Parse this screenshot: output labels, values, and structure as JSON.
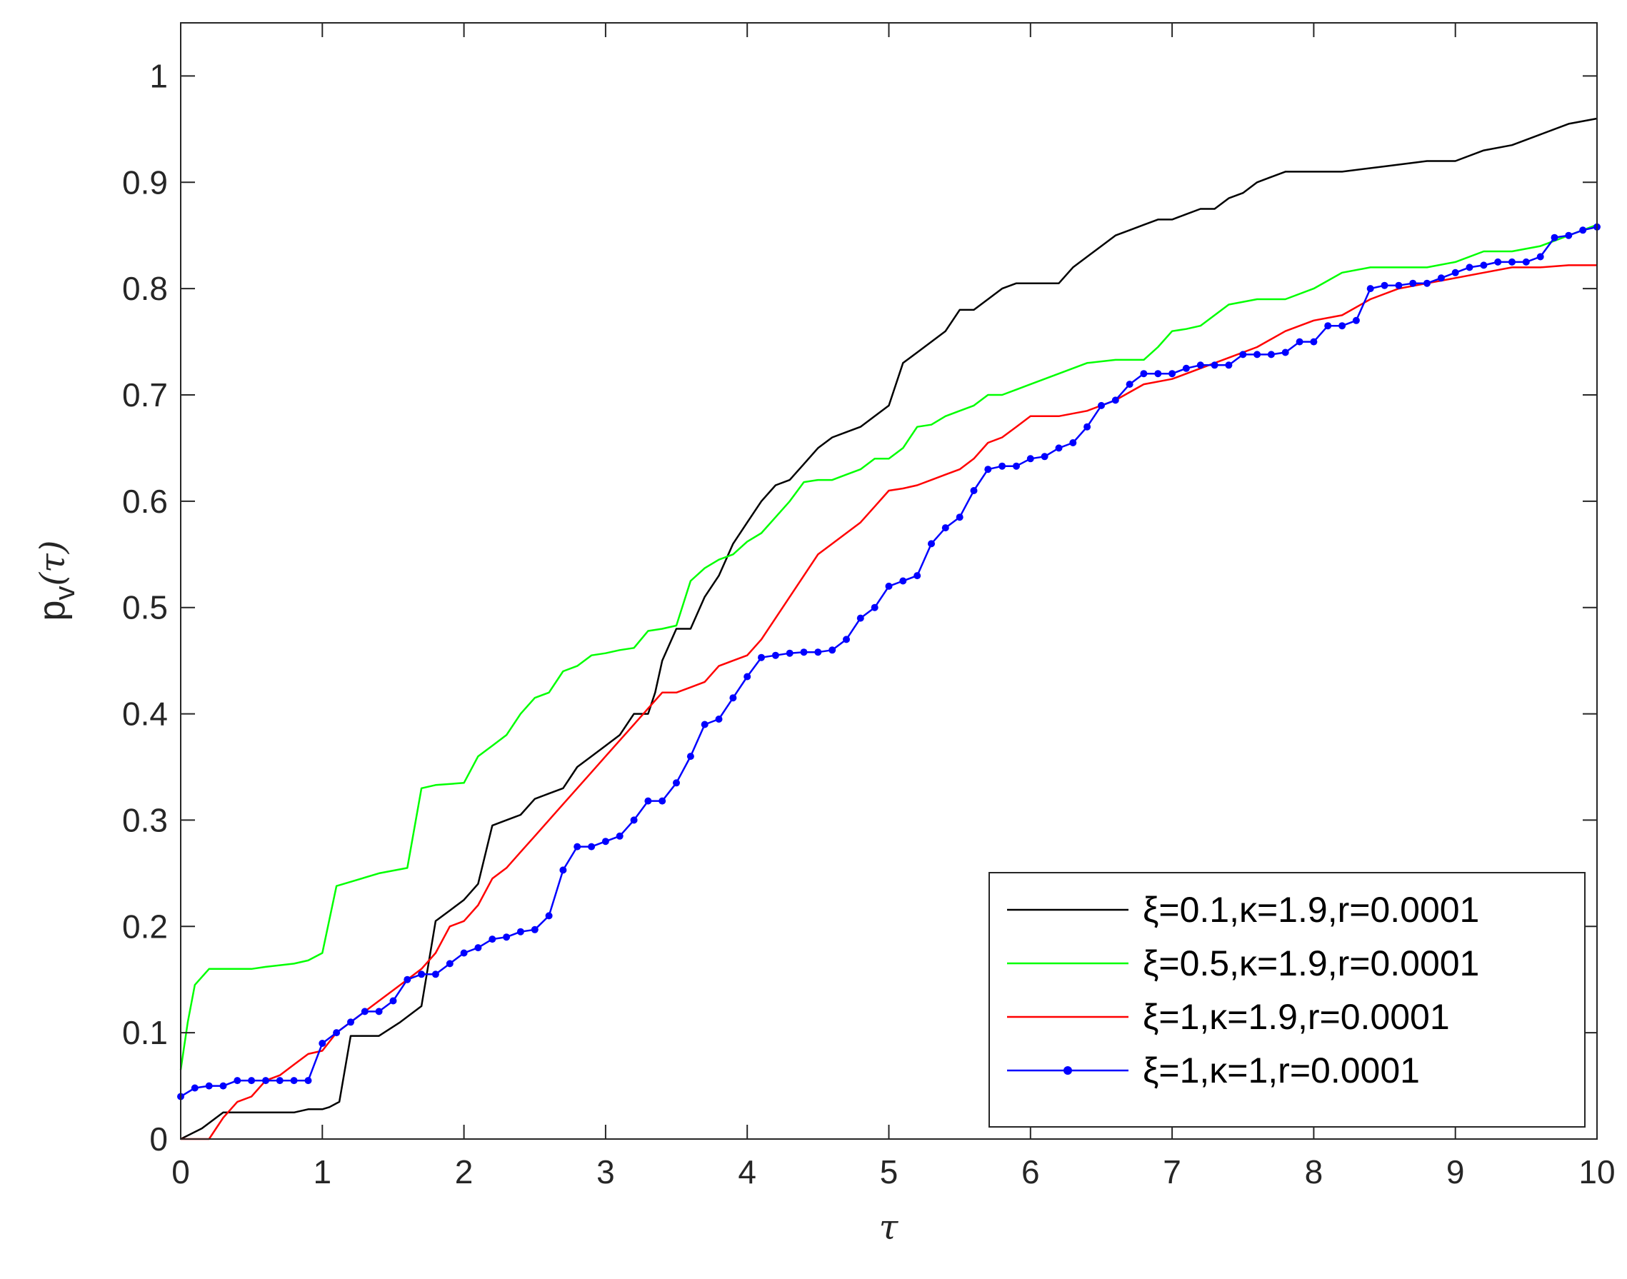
{
  "chart_data": {
    "type": "line",
    "title": "",
    "xlabel": "τ",
    "ylabel": "p_v(τ)",
    "ylabel_main": "p",
    "ylabel_sub": "v",
    "ylabel_arg": "(τ)",
    "xlim": [
      0,
      10
    ],
    "ylim": [
      0,
      1.05
    ],
    "xticks": [
      0,
      1,
      2,
      3,
      4,
      5,
      6,
      7,
      8,
      9,
      10
    ],
    "xtick_labels": [
      "0",
      "1",
      "2",
      "3",
      "4",
      "5",
      "6",
      "7",
      "8",
      "9",
      "10"
    ],
    "yticks": [
      0,
      0.1,
      0.2,
      0.3,
      0.4,
      0.5,
      0.6,
      0.7,
      0.8,
      0.9,
      1
    ],
    "ytick_labels": [
      "0",
      "0.1",
      "0.2",
      "0.3",
      "0.4",
      "0.5",
      "0.6",
      "0.7",
      "0.8",
      "0.9",
      "1"
    ],
    "grid": false,
    "legend_position": "bottom-right",
    "series": [
      {
        "name": "ξ=0.1,κ=1.9,r=0.0001",
        "color": "#000000",
        "marker": "none",
        "x": [
          0,
          0.15,
          0.3,
          0.5,
          0.6,
          0.8,
          0.9,
          1.0,
          1.05,
          1.12,
          1.2,
          1.28,
          1.4,
          1.55,
          1.7,
          1.8,
          1.9,
          2.0,
          2.1,
          2.2,
          2.3,
          2.4,
          2.5,
          2.6,
          2.7,
          2.8,
          2.9,
          3.0,
          3.1,
          3.2,
          3.3,
          3.35,
          3.4,
          3.5,
          3.6,
          3.7,
          3.8,
          3.9,
          4.0,
          4.1,
          4.2,
          4.3,
          4.4,
          4.5,
          4.6,
          4.7,
          4.8,
          4.9,
          5.0,
          5.1,
          5.2,
          5.3,
          5.4,
          5.5,
          5.6,
          5.7,
          5.8,
          5.9,
          6.0,
          6.1,
          6.2,
          6.3,
          6.4,
          6.5,
          6.6,
          6.7,
          6.8,
          6.9,
          7.0,
          7.1,
          7.2,
          7.3,
          7.4,
          7.5,
          7.6,
          7.7,
          7.8,
          7.9,
          8.0,
          8.2,
          8.5,
          8.8,
          9.0,
          9.2,
          9.4,
          9.6,
          9.8,
          10.0
        ],
        "y": [
          0.0,
          0.01,
          0.025,
          0.025,
          0.025,
          0.025,
          0.028,
          0.028,
          0.03,
          0.035,
          0.097,
          0.097,
          0.097,
          0.11,
          0.125,
          0.205,
          0.215,
          0.225,
          0.24,
          0.295,
          0.3,
          0.305,
          0.32,
          0.325,
          0.33,
          0.35,
          0.36,
          0.37,
          0.38,
          0.4,
          0.4,
          0.42,
          0.45,
          0.48,
          0.48,
          0.51,
          0.53,
          0.56,
          0.58,
          0.6,
          0.615,
          0.62,
          0.635,
          0.65,
          0.66,
          0.665,
          0.67,
          0.68,
          0.69,
          0.73,
          0.74,
          0.75,
          0.76,
          0.78,
          0.78,
          0.79,
          0.8,
          0.805,
          0.805,
          0.805,
          0.805,
          0.82,
          0.83,
          0.84,
          0.85,
          0.855,
          0.86,
          0.865,
          0.865,
          0.87,
          0.875,
          0.875,
          0.885,
          0.89,
          0.9,
          0.905,
          0.91,
          0.91,
          0.91,
          0.91,
          0.915,
          0.92,
          0.92,
          0.93,
          0.935,
          0.945,
          0.955,
          0.96
        ]
      },
      {
        "name": "ξ=0.5,κ=1.9,r=0.0001",
        "color": "#00ff00",
        "marker": "none",
        "x": [
          0,
          0.05,
          0.1,
          0.2,
          0.3,
          0.5,
          0.6,
          0.8,
          0.9,
          1.0,
          1.1,
          1.2,
          1.4,
          1.6,
          1.7,
          1.8,
          2.0,
          2.1,
          2.2,
          2.3,
          2.4,
          2.5,
          2.6,
          2.7,
          2.8,
          2.9,
          3.0,
          3.1,
          3.2,
          3.3,
          3.4,
          3.5,
          3.6,
          3.7,
          3.8,
          3.9,
          4.0,
          4.1,
          4.2,
          4.3,
          4.4,
          4.5,
          4.6,
          4.7,
          4.8,
          4.9,
          5.0,
          5.1,
          5.2,
          5.3,
          5.4,
          5.5,
          5.6,
          5.7,
          5.8,
          5.9,
          6.0,
          6.2,
          6.4,
          6.6,
          6.8,
          6.9,
          7.0,
          7.1,
          7.2,
          7.3,
          7.4,
          7.6,
          7.8,
          8.0,
          8.2,
          8.4,
          8.6,
          8.8,
          9.0,
          9.2,
          9.4,
          9.6,
          9.8,
          10.0
        ],
        "y": [
          0.065,
          0.11,
          0.145,
          0.16,
          0.16,
          0.16,
          0.162,
          0.165,
          0.168,
          0.175,
          0.238,
          0.242,
          0.25,
          0.255,
          0.33,
          0.333,
          0.335,
          0.36,
          0.37,
          0.38,
          0.4,
          0.415,
          0.42,
          0.44,
          0.445,
          0.455,
          0.457,
          0.46,
          0.462,
          0.478,
          0.48,
          0.483,
          0.525,
          0.537,
          0.545,
          0.55,
          0.562,
          0.57,
          0.585,
          0.6,
          0.618,
          0.62,
          0.62,
          0.625,
          0.63,
          0.64,
          0.64,
          0.65,
          0.67,
          0.672,
          0.68,
          0.685,
          0.69,
          0.7,
          0.7,
          0.705,
          0.71,
          0.72,
          0.73,
          0.733,
          0.733,
          0.745,
          0.76,
          0.762,
          0.765,
          0.775,
          0.785,
          0.79,
          0.79,
          0.8,
          0.815,
          0.82,
          0.82,
          0.82,
          0.825,
          0.835,
          0.835,
          0.84,
          0.85,
          0.86
        ]
      },
      {
        "name": "ξ=1,κ=1.9,r=0.0001",
        "color": "#ff0000",
        "marker": "none",
        "x": [
          0,
          0.2,
          0.3,
          0.4,
          0.5,
          0.6,
          0.7,
          0.8,
          0.9,
          1.0,
          1.1,
          1.2,
          1.3,
          1.4,
          1.5,
          1.6,
          1.7,
          1.8,
          1.9,
          2.0,
          2.1,
          2.2,
          2.3,
          2.4,
          2.5,
          2.6,
          2.7,
          2.8,
          2.9,
          3.0,
          3.1,
          3.2,
          3.3,
          3.4,
          3.5,
          3.6,
          3.7,
          3.8,
          3.9,
          4.0,
          4.1,
          4.2,
          4.3,
          4.4,
          4.5,
          4.6,
          4.7,
          4.8,
          4.9,
          5.0,
          5.1,
          5.2,
          5.3,
          5.4,
          5.5,
          5.6,
          5.7,
          5.8,
          5.9,
          6.0,
          6.2,
          6.4,
          6.6,
          6.8,
          7.0,
          7.2,
          7.4,
          7.6,
          7.8,
          8.0,
          8.2,
          8.4,
          8.6,
          8.8,
          9.0,
          9.2,
          9.4,
          9.6,
          9.8,
          10.0
        ],
        "y": [
          0.0,
          0.0,
          0.02,
          0.035,
          0.04,
          0.055,
          0.06,
          0.07,
          0.08,
          0.083,
          0.1,
          0.11,
          0.12,
          0.13,
          0.14,
          0.15,
          0.16,
          0.175,
          0.2,
          0.205,
          0.22,
          0.245,
          0.255,
          0.27,
          0.285,
          0.3,
          0.315,
          0.33,
          0.345,
          0.36,
          0.375,
          0.39,
          0.405,
          0.42,
          0.42,
          0.425,
          0.43,
          0.445,
          0.45,
          0.455,
          0.47,
          0.49,
          0.51,
          0.53,
          0.55,
          0.56,
          0.57,
          0.58,
          0.595,
          0.61,
          0.612,
          0.615,
          0.62,
          0.625,
          0.63,
          0.64,
          0.655,
          0.66,
          0.67,
          0.68,
          0.68,
          0.685,
          0.695,
          0.71,
          0.715,
          0.725,
          0.735,
          0.745,
          0.76,
          0.77,
          0.775,
          0.79,
          0.8,
          0.805,
          0.81,
          0.815,
          0.82,
          0.82,
          0.822,
          0.822
        ]
      },
      {
        "name": "ξ=1,κ=1,r=0.0001",
        "color": "#0000ff",
        "marker": "dot",
        "x": [
          0,
          0.1,
          0.2,
          0.3,
          0.4,
          0.5,
          0.6,
          0.7,
          0.8,
          0.9,
          1.0,
          1.1,
          1.2,
          1.3,
          1.4,
          1.5,
          1.6,
          1.7,
          1.8,
          1.9,
          2.0,
          2.1,
          2.2,
          2.3,
          2.4,
          2.5,
          2.6,
          2.7,
          2.8,
          2.9,
          3.0,
          3.1,
          3.2,
          3.3,
          3.4,
          3.5,
          3.6,
          3.7,
          3.8,
          3.9,
          4.0,
          4.1,
          4.2,
          4.3,
          4.4,
          4.5,
          4.6,
          4.7,
          4.8,
          4.9,
          5.0,
          5.1,
          5.2,
          5.3,
          5.4,
          5.5,
          5.6,
          5.7,
          5.8,
          5.9,
          6.0,
          6.1,
          6.2,
          6.3,
          6.4,
          6.5,
          6.6,
          6.7,
          6.8,
          6.9,
          7.0,
          7.1,
          7.2,
          7.3,
          7.4,
          7.5,
          7.6,
          7.7,
          7.8,
          7.9,
          8.0,
          8.1,
          8.2,
          8.3,
          8.4,
          8.5,
          8.6,
          8.7,
          8.8,
          8.9,
          9.0,
          9.1,
          9.2,
          9.3,
          9.4,
          9.5,
          9.6,
          9.7,
          9.8,
          9.9,
          10.0
        ],
        "y": [
          0.04,
          0.048,
          0.05,
          0.05,
          0.055,
          0.055,
          0.055,
          0.055,
          0.055,
          0.055,
          0.09,
          0.1,
          0.11,
          0.12,
          0.12,
          0.13,
          0.15,
          0.155,
          0.155,
          0.165,
          0.175,
          0.18,
          0.188,
          0.19,
          0.195,
          0.197,
          0.21,
          0.253,
          0.275,
          0.275,
          0.28,
          0.285,
          0.3,
          0.318,
          0.318,
          0.335,
          0.36,
          0.39,
          0.395,
          0.415,
          0.435,
          0.453,
          0.455,
          0.457,
          0.458,
          0.458,
          0.46,
          0.47,
          0.49,
          0.5,
          0.52,
          0.525,
          0.53,
          0.56,
          0.575,
          0.585,
          0.61,
          0.63,
          0.633,
          0.633,
          0.64,
          0.642,
          0.65,
          0.655,
          0.67,
          0.69,
          0.695,
          0.71,
          0.72,
          0.72,
          0.72,
          0.725,
          0.728,
          0.728,
          0.728,
          0.738,
          0.738,
          0.738,
          0.74,
          0.75,
          0.75,
          0.765,
          0.765,
          0.77,
          0.8,
          0.803,
          0.803,
          0.805,
          0.805,
          0.81,
          0.815,
          0.82,
          0.822,
          0.825,
          0.825,
          0.825,
          0.83,
          0.848,
          0.85,
          0.855,
          0.858
        ]
      }
    ]
  }
}
